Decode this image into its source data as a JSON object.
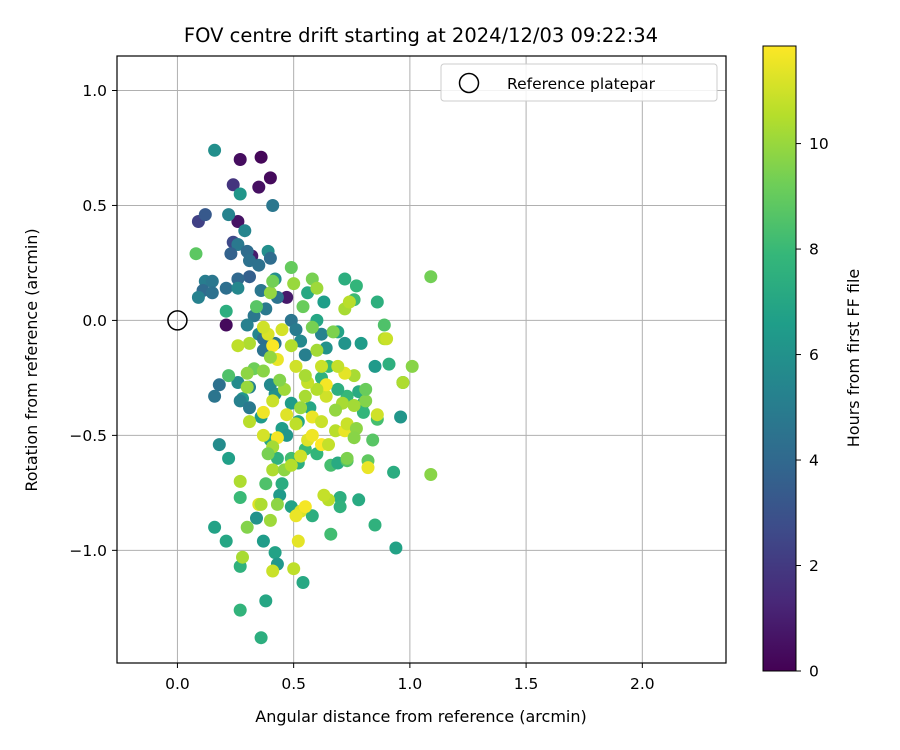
{
  "chart_data": {
    "type": "scatter",
    "title": "FOV centre drift starting at 2024/12/03 09:22:34",
    "xlabel": "Angular distance from reference (arcmin)",
    "ylabel": "Rotation from reference (arcmin)",
    "xlim": [
      -0.26,
      2.36
    ],
    "ylim": [
      -1.49,
      1.15
    ],
    "xticks": [
      0.0,
      0.5,
      1.0,
      1.5,
      2.0
    ],
    "xtick_labels": [
      "0.0",
      "0.5",
      "1.0",
      "1.5",
      "2.0"
    ],
    "yticks": [
      -1.0,
      -0.5,
      0.0,
      0.5,
      1.0
    ],
    "ytick_labels": [
      "−1.0",
      "−0.5",
      "0.0",
      "0.5",
      "1.0"
    ],
    "grid": true,
    "legend": {
      "placement": "top-right",
      "entries": [
        "Reference platepar"
      ]
    },
    "reference_point": {
      "x": 0.0,
      "y": 0.0,
      "label": "Reference platepar"
    },
    "colorbar": {
      "label": "Hours from first FF file",
      "range": [
        0,
        11.85
      ],
      "ticks": [
        0,
        2,
        4,
        6,
        8,
        10
      ],
      "tick_labels": [
        "0",
        "2",
        "4",
        "6",
        "8",
        "10"
      ],
      "colormap": "viridis",
      "colormap_stops": [
        "#440154",
        "#482878",
        "#3e4a89",
        "#31688e",
        "#26828e",
        "#1f9e89",
        "#35b779",
        "#6ece58",
        "#b5de2b",
        "#fde725"
      ]
    },
    "points": [
      [
        0.36,
        0.71,
        0.2
      ],
      [
        0.27,
        0.7,
        0.4
      ],
      [
        0.4,
        0.62,
        0.3
      ],
      [
        0.35,
        0.58,
        0.5
      ],
      [
        0.24,
        0.59,
        1.8
      ],
      [
        0.26,
        0.43,
        0.6
      ],
      [
        0.24,
        0.34,
        2.6
      ],
      [
        0.32,
        0.28,
        0.9
      ],
      [
        0.47,
        0.1,
        0.8
      ],
      [
        0.21,
        -0.02,
        0.3
      ],
      [
        0.09,
        0.43,
        2.3
      ],
      [
        0.12,
        0.46,
        3.3
      ],
      [
        0.16,
        0.74,
        5.9
      ],
      [
        0.27,
        0.55,
        6.2
      ],
      [
        0.41,
        0.5,
        4.7
      ],
      [
        0.22,
        0.46,
        5.3
      ],
      [
        0.29,
        0.39,
        5.4
      ],
      [
        0.26,
        0.33,
        4.8
      ],
      [
        0.3,
        0.3,
        4.2
      ],
      [
        0.31,
        0.26,
        4.4
      ],
      [
        0.35,
        0.24,
        4.4
      ],
      [
        0.23,
        0.29,
        3.7
      ],
      [
        0.39,
        0.3,
        5.9
      ],
      [
        0.4,
        0.27,
        4.2
      ],
      [
        0.42,
        0.18,
        5.9
      ],
      [
        0.31,
        0.19,
        3.6
      ],
      [
        0.26,
        0.18,
        4.0
      ],
      [
        0.12,
        0.17,
        5.0
      ],
      [
        0.15,
        0.17,
        4.7
      ],
      [
        0.11,
        0.13,
        4.1
      ],
      [
        0.09,
        0.1,
        5.2
      ],
      [
        0.15,
        0.12,
        4.4
      ],
      [
        0.21,
        0.14,
        4.3
      ],
      [
        0.26,
        0.14,
        5.5
      ],
      [
        0.36,
        0.13,
        4.7
      ],
      [
        0.43,
        0.1,
        4.5
      ],
      [
        0.38,
        0.05,
        4.8
      ],
      [
        0.33,
        0.02,
        4.7
      ],
      [
        0.3,
        -0.02,
        5.2
      ],
      [
        0.35,
        -0.06,
        5.4
      ],
      [
        0.37,
        -0.08,
        4.3
      ],
      [
        0.37,
        -0.13,
        4.5
      ],
      [
        0.42,
        -0.1,
        4.7
      ],
      [
        0.49,
        0.0,
        4.6
      ],
      [
        0.51,
        -0.04,
        4.9
      ],
      [
        0.53,
        -0.09,
        5.6
      ],
      [
        0.55,
        -0.15,
        5.1
      ],
      [
        0.62,
        -0.06,
        5.3
      ],
      [
        0.64,
        -0.12,
        6.0
      ],
      [
        0.72,
        -0.1,
        6.1
      ],
      [
        0.79,
        -0.1,
        6.5
      ],
      [
        0.85,
        -0.2,
        6.4
      ],
      [
        0.72,
        0.18,
        7.4
      ],
      [
        0.63,
        0.08,
        6.6
      ],
      [
        0.56,
        0.12,
        7.1
      ],
      [
        0.6,
        0.0,
        7.0
      ],
      [
        0.69,
        -0.05,
        6.8
      ],
      [
        0.77,
        0.15,
        7.8
      ],
      [
        0.76,
        0.09,
        8.1
      ],
      [
        0.86,
        0.08,
        7.5
      ],
      [
        0.89,
        -0.02,
        8.5
      ],
      [
        0.91,
        -0.19,
        7.5
      ],
      [
        0.97,
        -0.27,
        7.4
      ],
      [
        0.96,
        -0.42,
        6.2
      ],
      [
        0.78,
        -0.31,
        7.2
      ],
      [
        0.8,
        -0.36,
        7.6
      ],
      [
        0.8,
        -0.4,
        7.8
      ],
      [
        0.73,
        -0.33,
        7.9
      ],
      [
        0.69,
        -0.3,
        7.4
      ],
      [
        0.65,
        -0.2,
        8.0
      ],
      [
        0.62,
        -0.25,
        7.6
      ],
      [
        0.57,
        -0.38,
        7.0
      ],
      [
        0.52,
        -0.44,
        6.9
      ],
      [
        0.49,
        -0.36,
        6.5
      ],
      [
        0.42,
        -0.32,
        6.0
      ],
      [
        0.4,
        -0.28,
        5.6
      ],
      [
        0.31,
        -0.29,
        5.3
      ],
      [
        0.26,
        -0.27,
        5.7
      ],
      [
        0.28,
        -0.34,
        6.3
      ],
      [
        0.22,
        -0.24,
        8.5
      ],
      [
        0.18,
        -0.28,
        4.4
      ],
      [
        0.16,
        -0.33,
        4.6
      ],
      [
        0.27,
        -0.35,
        5.2
      ],
      [
        0.31,
        -0.38,
        4.8
      ],
      [
        0.36,
        -0.42,
        6.4
      ],
      [
        0.45,
        -0.47,
        6.6
      ],
      [
        0.47,
        -0.5,
        6.2
      ],
      [
        0.4,
        -0.52,
        7.0
      ],
      [
        0.43,
        -0.6,
        7.6
      ],
      [
        0.49,
        -0.6,
        8.2
      ],
      [
        0.52,
        -0.62,
        7.4
      ],
      [
        0.55,
        -0.56,
        8.0
      ],
      [
        0.6,
        -0.58,
        7.8
      ],
      [
        0.66,
        -0.63,
        8.3
      ],
      [
        0.69,
        -0.62,
        7.2
      ],
      [
        0.73,
        -0.61,
        8.6
      ],
      [
        0.7,
        -0.77,
        7.4
      ],
      [
        0.7,
        -0.81,
        7.6
      ],
      [
        0.78,
        -0.78,
        7.2
      ],
      [
        0.82,
        -0.61,
        8.9
      ],
      [
        0.84,
        -0.52,
        8.7
      ],
      [
        0.86,
        -0.43,
        8.3
      ],
      [
        0.93,
        -0.66,
        7.3
      ],
      [
        0.94,
        -0.99,
        6.8
      ],
      [
        0.85,
        -0.89,
        7.6
      ],
      [
        0.66,
        -0.93,
        8.2
      ],
      [
        0.58,
        -0.85,
        7.4
      ],
      [
        0.49,
        -0.81,
        6.8
      ],
      [
        0.44,
        -0.76,
        6.4
      ],
      [
        0.45,
        -0.71,
        7.3
      ],
      [
        0.38,
        -0.71,
        8.5
      ],
      [
        0.34,
        -0.86,
        6.0
      ],
      [
        0.37,
        -0.96,
        6.5
      ],
      [
        0.42,
        -1.01,
        6.8
      ],
      [
        0.43,
        -1.06,
        6.3
      ],
      [
        0.38,
        -1.22,
        7.0
      ],
      [
        0.36,
        -1.38,
        7.4
      ],
      [
        0.27,
        -1.26,
        7.7
      ],
      [
        0.27,
        -1.07,
        7.6
      ],
      [
        0.21,
        -0.96,
        7.0
      ],
      [
        0.16,
        -0.9,
        6.8
      ],
      [
        0.18,
        -0.54,
        5.7
      ],
      [
        0.22,
        -0.6,
        6.7
      ],
      [
        0.27,
        -0.77,
        8.0
      ],
      [
        0.54,
        -1.14,
        7.1
      ],
      [
        0.08,
        0.29,
        8.8
      ],
      [
        0.21,
        0.04,
        7.4
      ],
      [
        0.34,
        0.06,
        8.7
      ],
      [
        0.4,
        0.12,
        9.9
      ],
      [
        0.41,
        0.17,
        9.3
      ],
      [
        0.49,
        0.23,
        9.0
      ],
      [
        0.5,
        0.16,
        10.0
      ],
      [
        0.58,
        0.18,
        9.4
      ],
      [
        0.6,
        0.14,
        10.1
      ],
      [
        0.54,
        0.06,
        9.1
      ],
      [
        0.58,
        -0.03,
        9.4
      ],
      [
        0.67,
        -0.05,
        9.5
      ],
      [
        0.72,
        0.05,
        10.3
      ],
      [
        0.74,
        0.08,
        10.6
      ],
      [
        0.89,
        -0.08,
        10.5
      ],
      [
        1.09,
        0.19,
        9.3
      ],
      [
        1.01,
        -0.2,
        9.7
      ],
      [
        0.97,
        -0.27,
        10.4
      ],
      [
        0.86,
        -0.41,
        11.0
      ],
      [
        0.81,
        -0.35,
        9.6
      ],
      [
        0.81,
        -0.3,
        9.1
      ],
      [
        0.76,
        -0.24,
        10.3
      ],
      [
        0.72,
        -0.23,
        11.4
      ],
      [
        0.71,
        -0.36,
        10.3
      ],
      [
        0.68,
        -0.39,
        9.9
      ],
      [
        0.64,
        -0.33,
        11.0
      ],
      [
        0.64,
        -0.28,
        11.7
      ],
      [
        0.6,
        -0.3,
        10.5
      ],
      [
        0.62,
        -0.2,
        10.9
      ],
      [
        0.6,
        -0.13,
        10.2
      ],
      [
        0.56,
        -0.27,
        10.8
      ],
      [
        0.55,
        -0.33,
        10.3
      ],
      [
        0.53,
        -0.38,
        10.0
      ],
      [
        0.51,
        -0.45,
        10.7
      ],
      [
        0.47,
        -0.41,
        11.3
      ],
      [
        0.46,
        -0.3,
        10.1
      ],
      [
        0.44,
        -0.26,
        9.6
      ],
      [
        0.43,
        -0.17,
        11.5
      ],
      [
        0.41,
        -0.11,
        11.8
      ],
      [
        0.39,
        -0.06,
        11.2
      ],
      [
        0.37,
        -0.03,
        11.0
      ],
      [
        0.31,
        -0.1,
        10.4
      ],
      [
        0.33,
        -0.21,
        9.2
      ],
      [
        0.3,
        -0.23,
        9.8
      ],
      [
        0.26,
        -0.11,
        10.7
      ],
      [
        0.31,
        -0.44,
        10.6
      ],
      [
        0.37,
        -0.5,
        11.1
      ],
      [
        0.37,
        -0.4,
        11.6
      ],
      [
        0.41,
        -0.35,
        10.9
      ],
      [
        0.43,
        -0.51,
        11.7
      ],
      [
        0.41,
        -0.55,
        10.2
      ],
      [
        0.39,
        -0.58,
        9.4
      ],
      [
        0.41,
        -0.65,
        10.4
      ],
      [
        0.46,
        -0.65,
        9.8
      ],
      [
        0.49,
        -0.63,
        10.5
      ],
      [
        0.53,
        -0.59,
        11.0
      ],
      [
        0.56,
        -0.52,
        11.3
      ],
      [
        0.58,
        -0.5,
        11.6
      ],
      [
        0.62,
        -0.54,
        11.9
      ],
      [
        0.65,
        -0.54,
        10.8
      ],
      [
        0.68,
        -0.48,
        10.6
      ],
      [
        0.72,
        -0.48,
        11.5
      ],
      [
        0.73,
        -0.45,
        10.9
      ],
      [
        0.77,
        -0.47,
        9.8
      ],
      [
        0.76,
        -0.51,
        9.7
      ],
      [
        0.73,
        -0.6,
        9.5
      ],
      [
        0.69,
        -0.2,
        10.8
      ],
      [
        0.76,
        -0.37,
        10.2
      ],
      [
        0.9,
        -0.08,
        10.9
      ],
      [
        1.09,
        -0.67,
        9.7
      ],
      [
        0.65,
        -0.78,
        10.6
      ],
      [
        0.63,
        -0.76,
        10.8
      ],
      [
        0.53,
        -0.83,
        11.2
      ],
      [
        0.55,
        -0.81,
        11.7
      ],
      [
        0.51,
        -0.85,
        11.5
      ],
      [
        0.43,
        -0.8,
        9.8
      ],
      [
        0.4,
        -0.87,
        10.1
      ],
      [
        0.35,
        -0.8,
        11.3
      ],
      [
        0.36,
        -0.8,
        10.4
      ],
      [
        0.3,
        -0.9,
        9.6
      ],
      [
        0.28,
        -1.03,
        10.3
      ],
      [
        0.41,
        -1.09,
        10.9
      ],
      [
        0.52,
        -0.96,
        11.4
      ],
      [
        0.5,
        -1.08,
        10.7
      ],
      [
        0.82,
        -0.64,
        11.5
      ],
      [
        0.27,
        -0.7,
        10.4
      ],
      [
        0.3,
        -0.29,
        10.0
      ],
      [
        0.37,
        -0.22,
        9.7
      ],
      [
        0.4,
        -0.16,
        9.9
      ],
      [
        0.45,
        -0.04,
        11.1
      ],
      [
        0.49,
        -0.11,
        10.5
      ],
      [
        0.51,
        -0.2,
        11.0
      ],
      [
        0.55,
        -0.24,
        10.3
      ],
      [
        0.58,
        -0.42,
        11.5
      ],
      [
        0.62,
        -0.44,
        10.9
      ]
    ]
  }
}
